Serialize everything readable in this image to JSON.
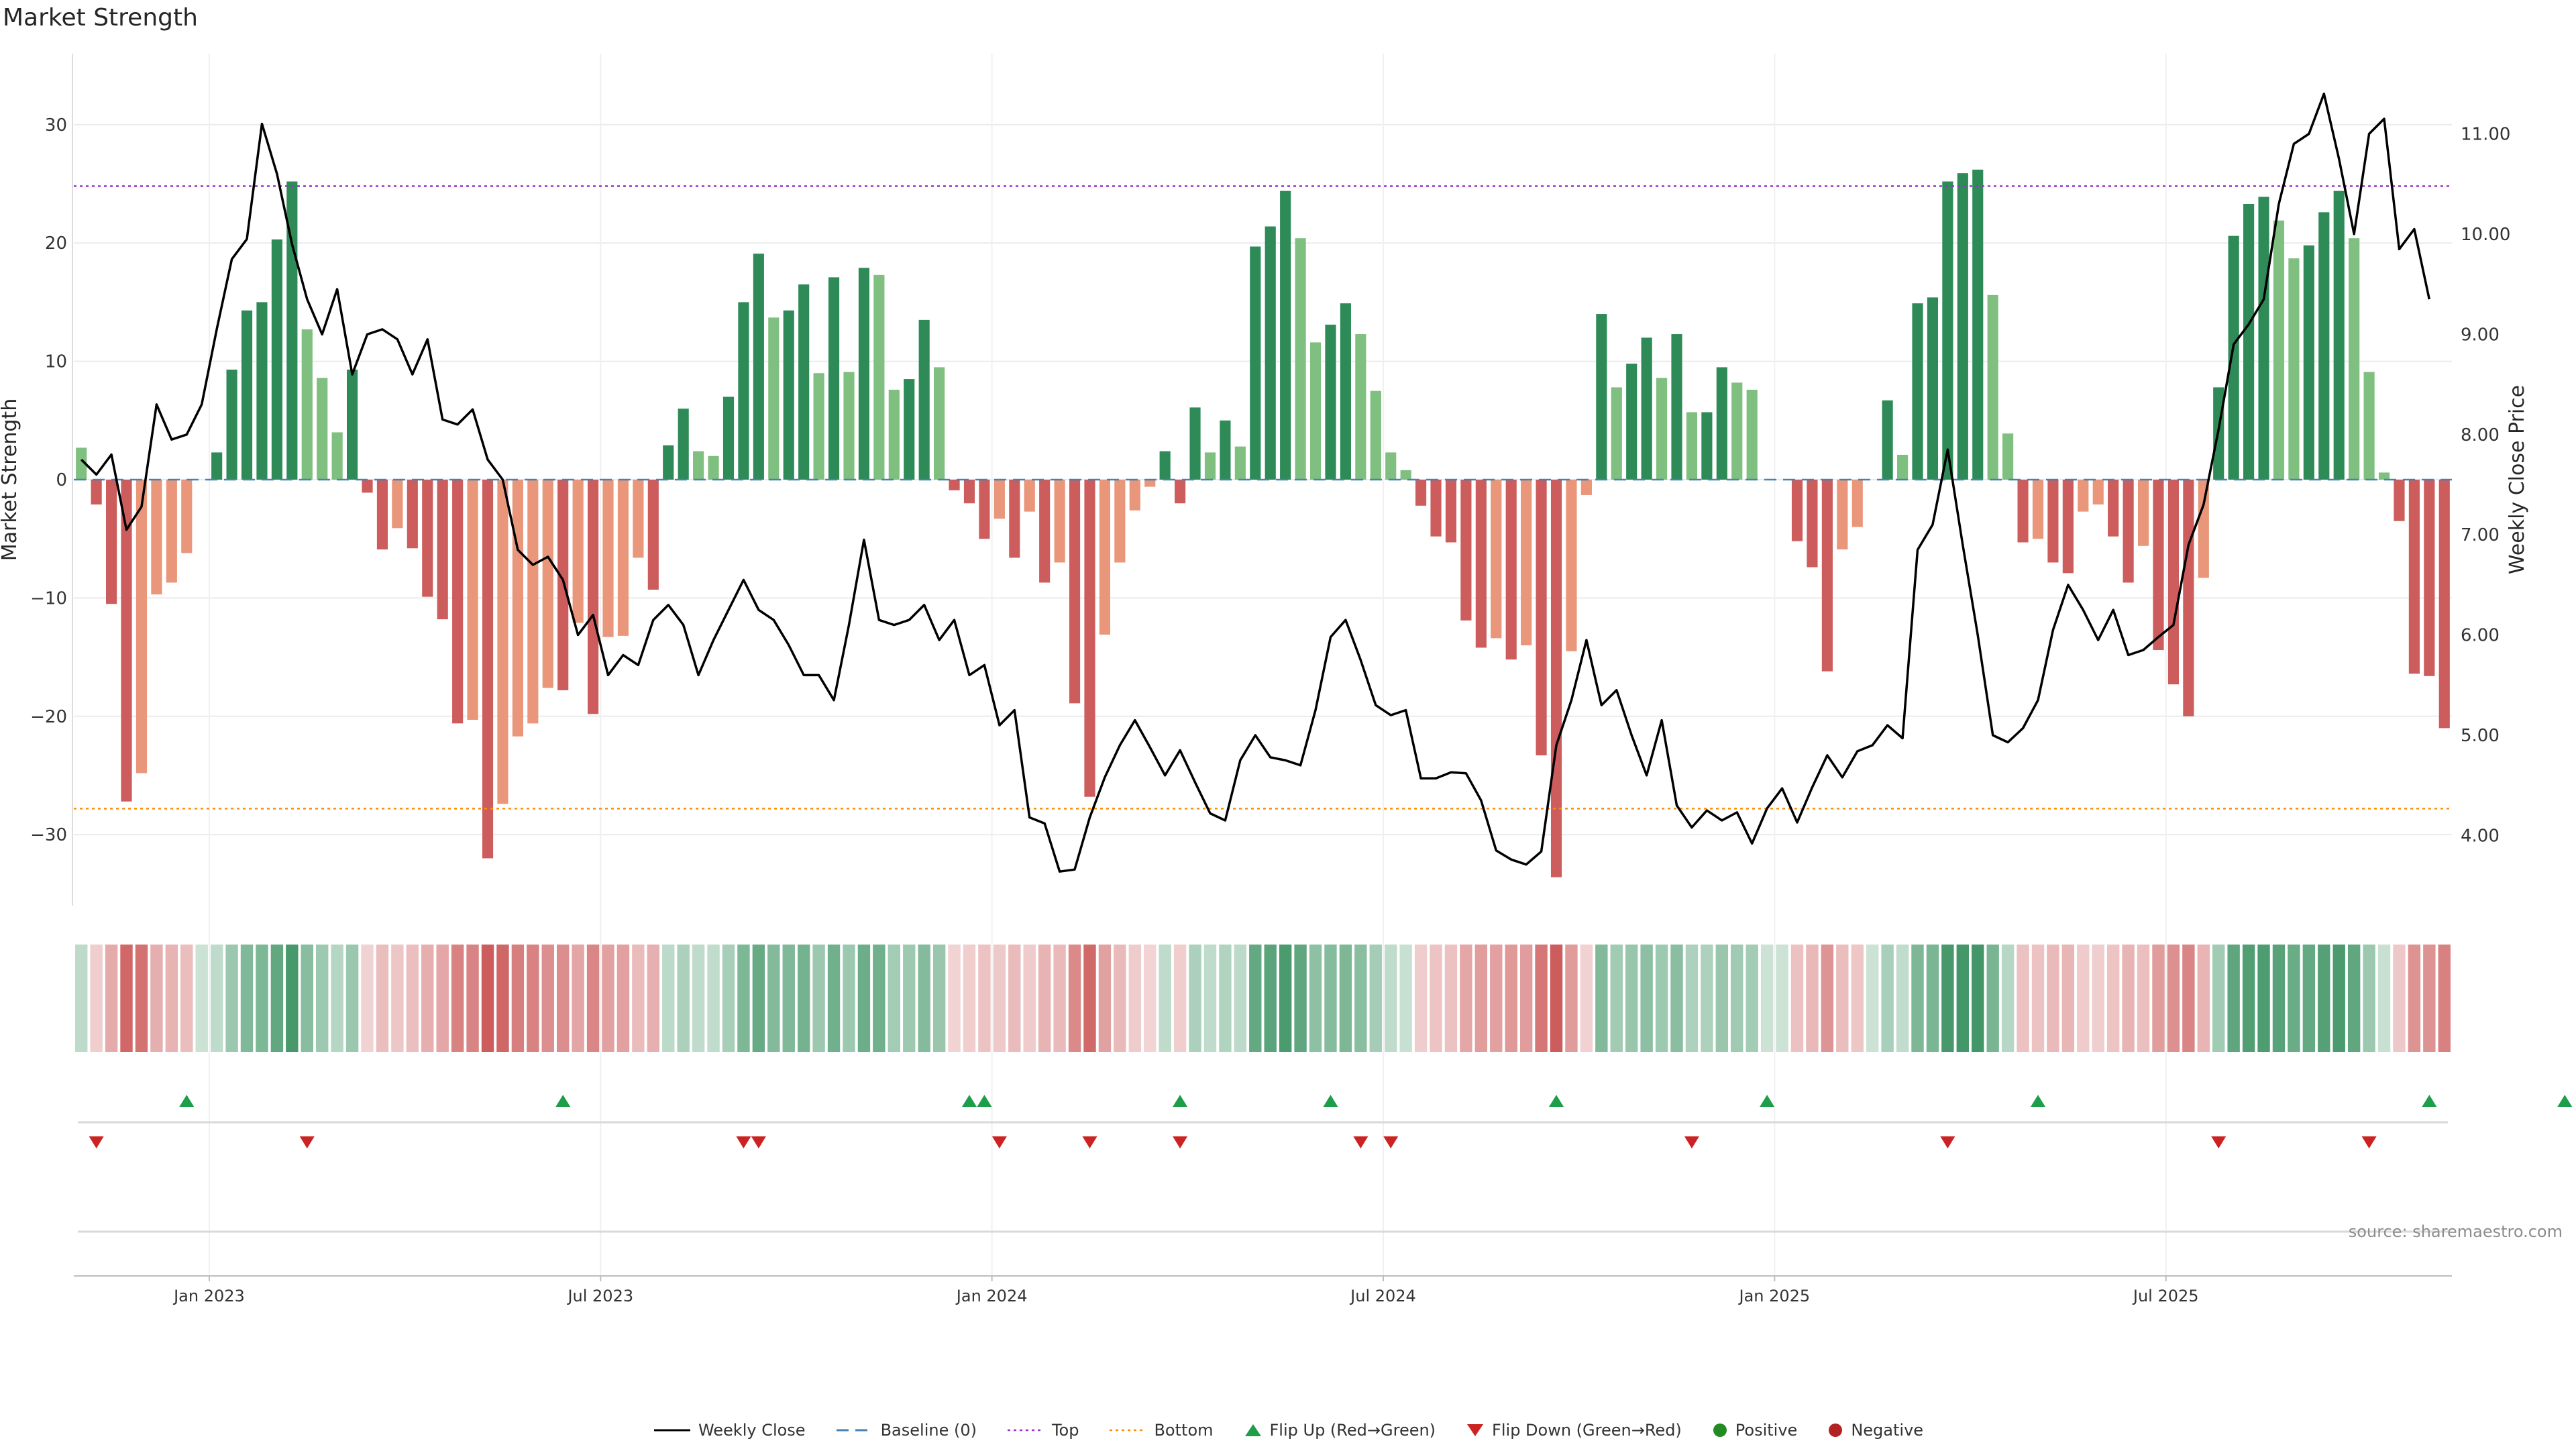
{
  "title": "Market Strength",
  "source": "source: sharemaestro.com",
  "legend": {
    "weekly_close": "Weekly Close",
    "baseline": "Baseline (0)",
    "top": "Top",
    "bottom": "Bottom",
    "flip_up": "Flip Up (Red→Green)",
    "flip_down": "Flip Down (Green→Red)",
    "positive": "Positive",
    "negative": "Negative"
  },
  "colors": {
    "strong_green": "#2e8b57",
    "light_green": "#7fbf7f",
    "strong_red": "#cd5c5c",
    "light_red": "#e9967a",
    "price_line": "#000000",
    "baseline": "#4682b4",
    "top_line": "#9932cc",
    "bottom_line": "#ff8c00",
    "flip_up": "#1e9e4a",
    "flip_down": "#cc2222",
    "positive_dot": "#228b22",
    "negative_dot": "#b22222"
  },
  "chart_data": {
    "type": "bar",
    "title": "Market Strength",
    "ylabel": "Market Strength",
    "y2label": "Weekly Close Price",
    "ylim": [
      -36,
      36
    ],
    "y2lim": [
      3.3,
      11.8
    ],
    "yticks": [
      "−30",
      "−20",
      "−10",
      "0",
      "10",
      "20",
      "30"
    ],
    "yticks_values": [
      -30,
      -20,
      -10,
      0,
      10,
      20,
      30
    ],
    "y2ticks": [
      "4.00",
      "5.00",
      "6.00",
      "7.00",
      "8.00",
      "9.00",
      "10.00",
      "11.00"
    ],
    "y2ticks_values": [
      4,
      5,
      6,
      7,
      8,
      9,
      10,
      11
    ],
    "xticks": [
      "Jan 2023",
      "Jul 2023",
      "Jan 2024",
      "Jul 2024",
      "Jan 2025",
      "Jul 2025"
    ],
    "xticks_week_index": [
      9,
      35,
      61,
      87,
      113,
      139
    ],
    "top_threshold": 24.8,
    "bottom_threshold": -27.8,
    "series": [
      {
        "name": "Market Strength",
        "values": [
          2.7,
          -2.1,
          -10.5,
          -27.2,
          -24.8,
          -9.7,
          -8.7,
          -6.2,
          0,
          2.3,
          9.3,
          14.3,
          15.0,
          20.3,
          25.2,
          12.7,
          8.6,
          4.0,
          9.3,
          -1.1,
          -5.9,
          -4.1,
          -5.8,
          -9.9,
          -11.8,
          -20.6,
          -20.3,
          -32.0,
          -27.4,
          -21.7,
          -20.6,
          -17.6,
          -17.8,
          -12.1,
          -19.8,
          -13.3,
          -13.2,
          -6.6,
          -9.3,
          2.9,
          6.0,
          2.4,
          2.0,
          7.0,
          15.0,
          19.1,
          13.7,
          14.3,
          16.5,
          9.0,
          17.1,
          9.1,
          17.9,
          17.3,
          7.6,
          8.5,
          13.5,
          9.5,
          -0.9,
          -2.0,
          -5.0,
          -3.3,
          -6.6,
          -2.7,
          -8.7,
          -7.0,
          -18.9,
          -26.8,
          -13.1,
          -7.0,
          -2.6,
          -0.6,
          2.4,
          -2.0,
          6.1,
          2.3,
          5.0,
          2.8,
          19.7,
          21.4,
          24.4,
          20.4,
          11.6,
          13.1,
          14.9,
          12.3,
          7.5,
          2.3,
          0.8,
          -2.2,
          -4.8,
          -5.3,
          -11.9,
          -14.2,
          -13.4,
          -15.2,
          -14.0,
          -23.3,
          -33.6,
          -14.5,
          -1.3,
          14.0,
          7.8,
          9.8,
          12.0,
          8.6,
          12.3,
          5.7,
          5.7,
          9.5,
          8.2,
          7.6,
          0,
          0,
          -5.2,
          -7.4,
          -16.2,
          -5.9,
          -4.0,
          0,
          6.7,
          2.1,
          14.9,
          15.4,
          25.2,
          25.9,
          26.2,
          15.6,
          3.9,
          -5.3,
          -5.0,
          -7.0,
          -7.9,
          -2.7,
          -2.1,
          -4.8,
          -8.7,
          -5.6,
          -14.4,
          -17.3,
          -20.0,
          -8.3,
          7.8,
          20.6,
          23.3,
          23.9,
          21.9,
          18.7,
          19.8,
          22.6,
          24.4,
          20.4,
          9.1,
          0.6,
          -3.5,
          -16.4,
          -16.6,
          -21.0
        ]
      },
      {
        "name": "Weekly Close",
        "values": [
          7.75,
          7.6,
          7.8,
          7.05,
          7.28,
          8.3,
          7.95,
          8.0,
          8.3,
          9.05,
          9.75,
          9.95,
          11.1,
          10.6,
          9.9,
          9.35,
          9.0,
          9.45,
          8.6,
          9.0,
          9.05,
          8.95,
          8.6,
          8.95,
          8.15,
          8.1,
          8.25,
          7.75,
          7.55,
          6.85,
          6.7,
          6.78,
          6.55,
          6.0,
          6.2,
          5.6,
          5.8,
          5.7,
          6.15,
          6.3,
          6.1,
          5.6,
          5.95,
          6.25,
          6.55,
          6.25,
          6.15,
          5.9,
          5.6,
          5.6,
          5.35,
          6.1,
          6.95,
          6.15,
          6.1,
          6.15,
          6.3,
          5.95,
          6.15,
          5.6,
          5.7,
          5.1,
          5.25,
          4.18,
          4.12,
          3.64,
          3.66,
          4.18,
          4.58,
          4.9,
          5.15,
          4.88,
          4.6,
          4.85,
          4.53,
          4.22,
          4.15,
          4.75,
          5.0,
          4.78,
          4.75,
          4.7,
          5.25,
          5.98,
          6.15,
          5.75,
          5.3,
          5.2,
          5.25,
          4.57,
          4.57,
          4.63,
          4.62,
          4.35,
          3.85,
          3.76,
          3.71,
          3.84,
          4.9,
          5.35,
          5.95,
          5.3,
          5.45,
          5.0,
          4.6,
          5.15,
          4.3,
          4.08,
          4.25,
          4.15,
          4.23,
          3.92,
          4.27,
          4.47,
          4.13,
          4.48,
          4.8,
          4.58,
          4.84,
          4.9,
          5.1,
          4.97,
          6.85,
          7.1,
          7.85,
          6.9,
          6.0,
          5.0,
          4.93,
          5.07,
          5.35,
          6.05,
          6.5,
          6.25,
          5.95,
          6.25,
          5.8,
          5.85,
          5.98,
          6.1,
          6.9,
          7.3,
          8.05,
          8.9,
          9.1,
          9.35,
          10.3,
          10.9,
          11.0,
          11.4,
          10.75,
          10.0,
          11.0,
          11.15,
          9.85,
          10.05,
          9.35
        ]
      }
    ],
    "flip_up_weeks": [
      7,
      32,
      59,
      60,
      73,
      83,
      98,
      112,
      130,
      156,
      165
    ],
    "flip_down_weeks": [
      1,
      15,
      44,
      45,
      61,
      67,
      73,
      85,
      87,
      107,
      124,
      142,
      152
    ]
  }
}
